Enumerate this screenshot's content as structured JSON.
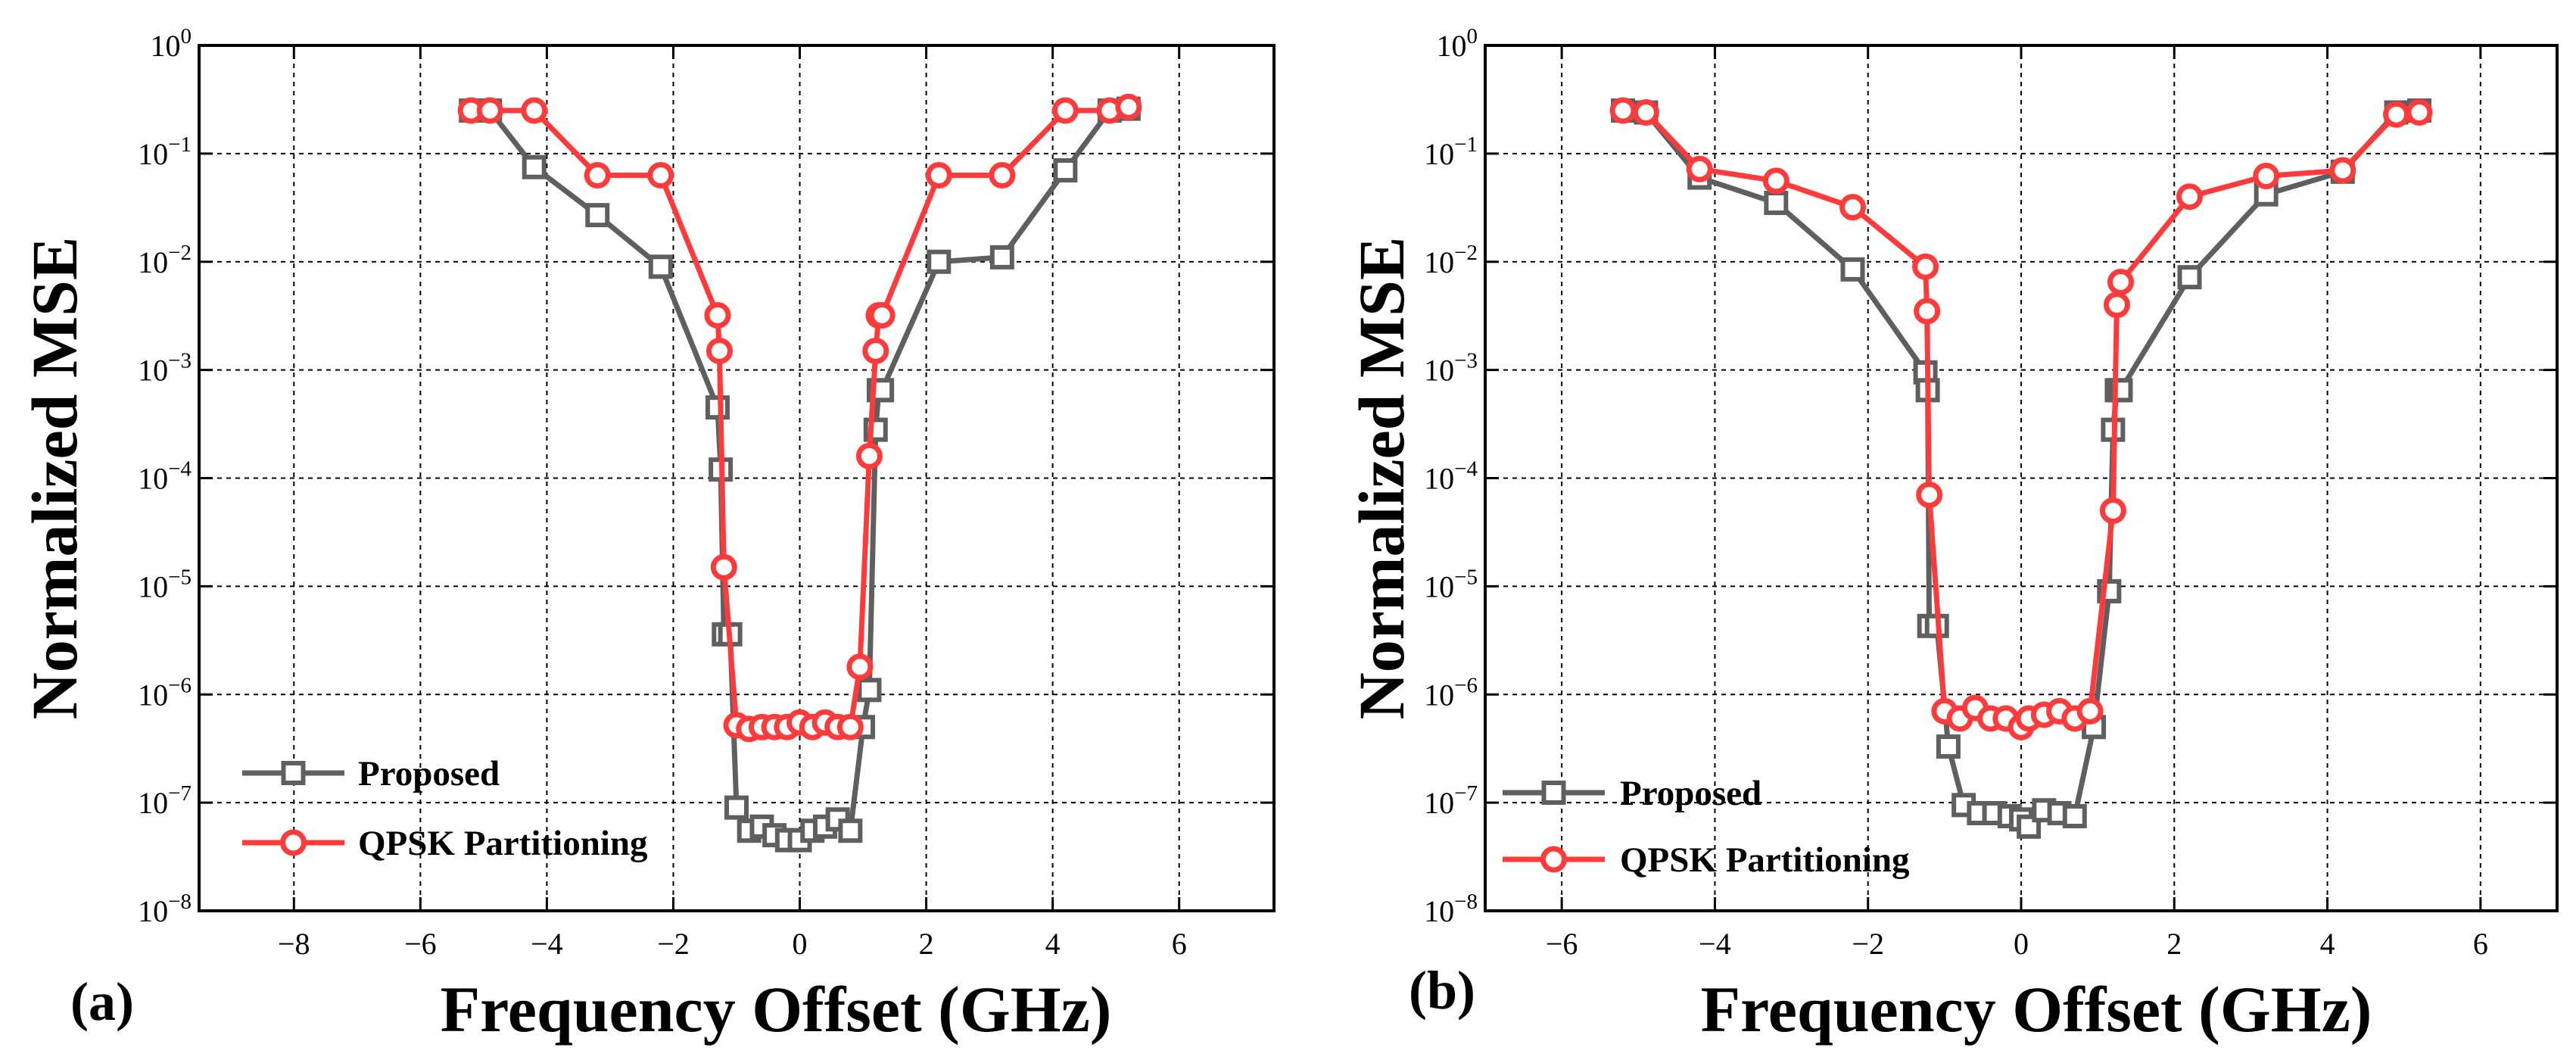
{
  "figure": {
    "panels": [
      "(a)",
      "(b)"
    ]
  },
  "chart_data": [
    {
      "type": "line",
      "panel_label": "(a)",
      "xlabel": "Frequency Offset (GHz)",
      "ylabel": "Normalized MSE",
      "xlim": [
        -9.5,
        7.5
      ],
      "x_ticks": [
        -8,
        -6,
        -4,
        -2,
        0,
        2,
        4,
        6
      ],
      "ylim": [
        1e-08,
        1
      ],
      "y_scale": "log",
      "y_ticks": [
        {
          "base": "10",
          "exp": "-8"
        },
        {
          "base": "10",
          "exp": "-7"
        },
        {
          "base": "10",
          "exp": "-6"
        },
        {
          "base": "10",
          "exp": "-5"
        },
        {
          "base": "10",
          "exp": "-4"
        },
        {
          "base": "10",
          "exp": "-3"
        },
        {
          "base": "10",
          "exp": "-2"
        },
        {
          "base": "10",
          "exp": "-1"
        },
        {
          "base": "10",
          "exp": "0"
        }
      ],
      "grid": true,
      "legend_position": "bottom-left",
      "series": [
        {
          "name": "Proposed",
          "color": "#5f5f5f",
          "marker": "square",
          "x": [
            -5.2,
            -4.9,
            -4.2,
            -3.2,
            -2.2,
            -1.3,
            -1.25,
            -1.2,
            -1.1,
            -1.0,
            -0.8,
            -0.6,
            -0.4,
            -0.2,
            0.0,
            0.2,
            0.4,
            0.6,
            0.8,
            1.0,
            1.1,
            1.2,
            1.25,
            1.3,
            2.2,
            3.2,
            4.2,
            4.9,
            5.2
          ],
          "y": [
            0.25,
            0.25,
            0.075,
            0.027,
            0.009,
            0.00045,
            0.00012,
            3.6e-06,
            3.6e-06,
            9e-08,
            5.5e-08,
            6e-08,
            5e-08,
            4.5e-08,
            4.5e-08,
            5.5e-08,
            6e-08,
            7e-08,
            5.5e-08,
            5e-07,
            1.1e-06,
            0.00028,
            0.00065,
            0.00065,
            0.01,
            0.011,
            0.07,
            0.25,
            0.26
          ]
        },
        {
          "name": "QPSK Partitioning",
          "color": "#ff3a3a",
          "marker": "circle",
          "x": [
            -5.2,
            -4.9,
            -4.2,
            -3.2,
            -2.2,
            -1.3,
            -1.27,
            -1.2,
            -1.0,
            -0.8,
            -0.6,
            -0.4,
            -0.2,
            0.0,
            0.2,
            0.4,
            0.6,
            0.8,
            0.95,
            1.1,
            1.2,
            1.25,
            1.3,
            2.2,
            3.2,
            4.2,
            4.9,
            5.2
          ],
          "y": [
            0.25,
            0.25,
            0.25,
            0.063,
            0.063,
            0.0032,
            0.0015,
            1.5e-05,
            5.2e-07,
            4.8e-07,
            5e-07,
            5e-07,
            5e-07,
            5.5e-07,
            5e-07,
            5.5e-07,
            5e-07,
            5e-07,
            1.8e-06,
            0.00016,
            0.0015,
            0.0032,
            0.0032,
            0.063,
            0.063,
            0.25,
            0.25,
            0.27
          ]
        }
      ]
    },
    {
      "type": "line",
      "panel_label": "(b)",
      "xlabel": "Frequency Offset (GHz)",
      "ylabel": "Normalized MSE",
      "xlim": [
        -7,
        7
      ],
      "x_ticks": [
        -6,
        -4,
        -2,
        0,
        2,
        4,
        6
      ],
      "ylim": [
        1e-08,
        1
      ],
      "y_scale": "log",
      "y_ticks": [
        {
          "base": "10",
          "exp": "-8"
        },
        {
          "base": "10",
          "exp": "-7"
        },
        {
          "base": "10",
          "exp": "-6"
        },
        {
          "base": "10",
          "exp": "-5"
        },
        {
          "base": "10",
          "exp": "-4"
        },
        {
          "base": "10",
          "exp": "-3"
        },
        {
          "base": "10",
          "exp": "-2"
        },
        {
          "base": "10",
          "exp": "-1"
        },
        {
          "base": "10",
          "exp": "0"
        }
      ],
      "grid": true,
      "legend_position": "bottom-left",
      "series": [
        {
          "name": "Proposed",
          "color": "#5f5f5f",
          "marker": "square",
          "x": [
            -5.2,
            -4.9,
            -4.2,
            -3.2,
            -2.2,
            -1.25,
            -1.22,
            -1.2,
            -1.1,
            -0.95,
            -0.75,
            -0.55,
            -0.35,
            -0.15,
            0.0,
            0.1,
            0.3,
            0.5,
            0.7,
            0.95,
            1.15,
            1.2,
            1.25,
            1.3,
            2.2,
            3.2,
            4.2,
            4.9,
            5.2
          ],
          "y": [
            0.25,
            0.24,
            0.06,
            0.035,
            0.0085,
            0.00095,
            0.00065,
            4.3e-06,
            4.3e-06,
            3.3e-07,
            9.5e-08,
            8e-08,
            8e-08,
            7.5e-08,
            7e-08,
            6e-08,
            8.5e-08,
            8e-08,
            7.5e-08,
            5e-07,
            9e-06,
            0.00028,
            0.00065,
            0.00065,
            0.0072,
            0.042,
            0.068,
            0.24,
            0.25
          ]
        },
        {
          "name": "QPSK Partitioning",
          "color": "#ff3a3a",
          "marker": "circle",
          "x": [
            -5.2,
            -4.9,
            -4.2,
            -3.2,
            -2.2,
            -1.25,
            -1.23,
            -1.2,
            -1.0,
            -0.8,
            -0.6,
            -0.4,
            -0.2,
            0.0,
            0.1,
            0.3,
            0.5,
            0.7,
            0.9,
            1.2,
            1.25,
            1.3,
            2.2,
            3.2,
            4.2,
            4.9,
            5.2
          ],
          "y": [
            0.25,
            0.24,
            0.072,
            0.056,
            0.032,
            0.009,
            0.0035,
            7e-05,
            7e-07,
            6e-07,
            7.5e-07,
            6e-07,
            6e-07,
            5e-07,
            6e-07,
            6.5e-07,
            7e-07,
            6e-07,
            7e-07,
            5e-05,
            0.004,
            0.0065,
            0.04,
            0.062,
            0.07,
            0.23,
            0.24
          ]
        }
      ]
    }
  ]
}
